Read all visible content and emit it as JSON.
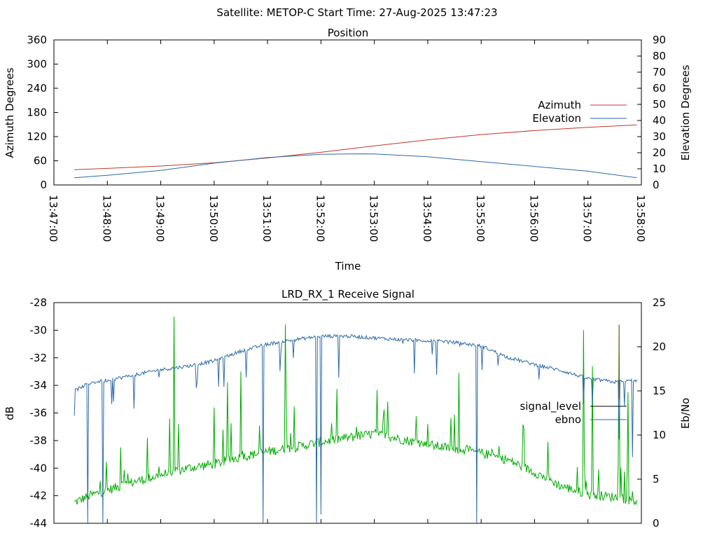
{
  "suptitle": "Satellite: METOP-C    Start Time: 27-Aug-2025 13:47:23",
  "colors": {
    "azimuth": "#c0392b",
    "elevation": "#2e6aa7",
    "signal_level": "#c0392b",
    "ebno_line": "#2e6aa7",
    "signal_fill": "#00aa00"
  },
  "chart_data": [
    {
      "type": "line",
      "title": "Position",
      "xlabel": "Time",
      "ylabel": "Azimuth Degrees",
      "y2label": "Elevation Degrees",
      "x_ticks": [
        "13:47:00",
        "13:48:00",
        "13:49:00",
        "13:50:00",
        "13:51:00",
        "13:52:00",
        "13:53:00",
        "13:54:00",
        "13:55:00",
        "13:56:00",
        "13:57:00",
        "13:58:00"
      ],
      "xlim": [
        "13:47:00",
        "13:58:00"
      ],
      "ylim": [
        0,
        360
      ],
      "y_ticks": [
        "0",
        "60",
        "120",
        "180",
        "240",
        "300",
        "360"
      ],
      "y2lim": [
        0,
        90
      ],
      "y2_ticks": [
        "0",
        "10",
        "20",
        "30",
        "40",
        "50",
        "60",
        "70",
        "80",
        "90"
      ],
      "legend": "right",
      "grid": false,
      "series": [
        {
          "name": "Azimuth",
          "axis": "left",
          "points": [
            [
              "13:47:23",
              38
            ],
            [
              "13:48:00",
              41
            ],
            [
              "13:49:00",
              47
            ],
            [
              "13:50:00",
              55
            ],
            [
              "13:51:00",
              67
            ],
            [
              "13:52:00",
              81
            ],
            [
              "13:53:00",
              97
            ],
            [
              "13:54:00",
              112
            ],
            [
              "13:55:00",
              125
            ],
            [
              "13:56:00",
              135
            ],
            [
              "13:57:00",
              143
            ],
            [
              "13:57:55",
              149
            ]
          ]
        },
        {
          "name": "Elevation",
          "axis": "right",
          "points": [
            [
              "13:47:23",
              4.5
            ],
            [
              "13:48:00",
              6
            ],
            [
              "13:49:00",
              9
            ],
            [
              "13:50:00",
              13.5
            ],
            [
              "13:51:00",
              17
            ],
            [
              "13:52:00",
              19
            ],
            [
              "13:52:45",
              19.3
            ],
            [
              "13:53:00",
              19.2
            ],
            [
              "13:54:00",
              17.5
            ],
            [
              "13:55:00",
              14.5
            ],
            [
              "13:56:00",
              11.5
            ],
            [
              "13:57:00",
              8.5
            ],
            [
              "13:57:55",
              4.5
            ]
          ]
        }
      ]
    },
    {
      "type": "line",
      "title": "LRD_RX_1 Receive Signal",
      "ylabel": "dB",
      "y2label": "Eb/No",
      "xlim": [
        "13:47:00",
        "13:58:00"
      ],
      "ylim": [
        -44,
        -28
      ],
      "y_ticks": [
        "-44",
        "-42",
        "-40",
        "-38",
        "-36",
        "-34",
        "-32",
        "-30",
        "-28"
      ],
      "y2lim": [
        0,
        25
      ],
      "y2_ticks": [
        "0",
        "5",
        "10",
        "15",
        "20",
        "25"
      ],
      "legend": "right",
      "grid": false,
      "series": [
        {
          "name": "signal_level",
          "axis": "left",
          "points": [
            [
              "13:47:23",
              -42.5
            ],
            [
              "13:47:40",
              -42
            ],
            [
              "13:48:00",
              -41.6
            ],
            [
              "13:48:30",
              -41
            ],
            [
              "13:49:00",
              -40.5
            ],
            [
              "13:49:30",
              -40
            ],
            [
              "13:50:00",
              -39.7
            ],
            [
              "13:50:30",
              -39.2
            ],
            [
              "13:51:00",
              -38.8
            ],
            [
              "13:51:30",
              -38.5
            ],
            [
              "13:52:00",
              -38.1
            ],
            [
              "13:52:30",
              -37.8
            ],
            [
              "13:53:00",
              -37.5
            ],
            [
              "13:53:30",
              -37.9
            ],
            [
              "13:54:00",
              -38.3
            ],
            [
              "13:54:30",
              -38.6
            ],
            [
              "13:55:00",
              -38.9
            ],
            [
              "13:55:30",
              -39.4
            ],
            [
              "13:56:00",
              -40.3
            ],
            [
              "13:56:30",
              -41.3
            ],
            [
              "13:57:00",
              -41.9
            ],
            [
              "13:57:30",
              -42.1
            ],
            [
              "13:57:55",
              -42.4
            ]
          ],
          "spikes": [
            [
              "13:48:15",
              -38.5
            ],
            [
              "13:48:45",
              -37.8
            ],
            [
              "13:49:10",
              -36.4
            ],
            [
              "13:49:15",
              -29.0
            ],
            [
              "13:49:20",
              -36.8
            ],
            [
              "13:50:00",
              -35.6
            ],
            [
              "13:50:15",
              -33.8
            ],
            [
              "13:50:30",
              -33.0
            ],
            [
              "13:51:20",
              -29.6
            ],
            [
              "13:52:40",
              -37.0
            ],
            [
              "13:53:15",
              -35.2
            ],
            [
              "13:54:00",
              -36.8
            ],
            [
              "13:54:35",
              -33.1
            ],
            [
              "13:55:20",
              -38.4
            ],
            [
              "13:56:15",
              -38.1
            ],
            [
              "13:56:55",
              -30.0
            ],
            [
              "13:57:05",
              -32.6
            ],
            [
              "13:57:35",
              -29.6
            ],
            [
              "13:57:45",
              -34.5
            ]
          ]
        },
        {
          "name": "ebno",
          "axis": "right",
          "points": [
            [
              "13:47:23",
              15
            ],
            [
              "13:47:40",
              15.9
            ],
            [
              "13:48:00",
              16.2
            ],
            [
              "13:48:30",
              16.8
            ],
            [
              "13:49:00",
              17.4
            ],
            [
              "13:49:30",
              17.8
            ],
            [
              "13:50:00",
              18.4
            ],
            [
              "13:50:30",
              19.5
            ],
            [
              "13:51:00",
              20.3
            ],
            [
              "13:51:30",
              20.8
            ],
            [
              "13:52:00",
              21.2
            ],
            [
              "13:52:30",
              21.2
            ],
            [
              "13:53:00",
              21.0
            ],
            [
              "13:53:30",
              20.8
            ],
            [
              "13:54:00",
              20.7
            ],
            [
              "13:54:30",
              20.5
            ],
            [
              "13:55:00",
              20.1
            ],
            [
              "13:55:30",
              18.8
            ],
            [
              "13:56:00",
              18.0
            ],
            [
              "13:56:30",
              17.3
            ],
            [
              "13:57:00",
              16.4
            ],
            [
              "13:57:30",
              16.0
            ],
            [
              "13:57:55",
              16.2
            ]
          ],
          "dips": [
            [
              "13:47:38",
              0
            ],
            [
              "13:47:55",
              0
            ],
            [
              "13:48:05",
              13.5
            ],
            [
              "13:48:30",
              13.0
            ],
            [
              "13:50:05",
              15.5
            ],
            [
              "13:50:55",
              0
            ],
            [
              "13:51:55",
              0
            ],
            [
              "13:52:00",
              1.0
            ],
            [
              "13:52:20",
              16.5
            ],
            [
              "13:53:45",
              17.0
            ],
            [
              "13:54:10",
              16.8
            ],
            [
              "13:54:55",
              0
            ],
            [
              "13:56:05",
              16.3
            ],
            [
              "13:57:05",
              13.5
            ],
            [
              "13:57:35",
              9.5
            ],
            [
              "13:57:50",
              7.5
            ]
          ]
        }
      ]
    }
  ]
}
